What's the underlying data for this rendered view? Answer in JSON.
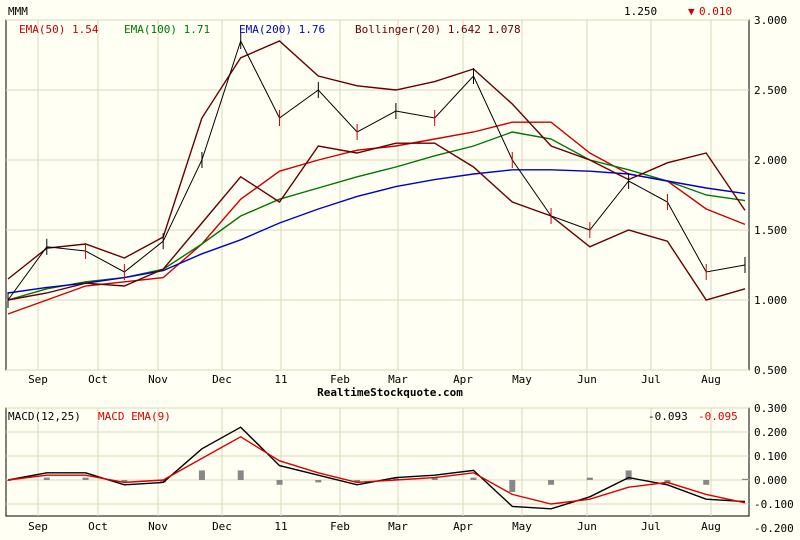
{
  "header": {
    "symbol": "MMM",
    "last_price": "1.250",
    "change_arrow": "▼",
    "change": "0.010",
    "watermark": "RealtimeStockquote.com"
  },
  "legend": {
    "ema50": "EMA(50) 1.54",
    "ema100": "EMA(100) 1.71",
    "ema200": "EMA(200) 1.76",
    "bollinger": "Bollinger(20) 1.642 1.078"
  },
  "macd_legend": {
    "macd": "MACD(12,25)",
    "signal": "MACD EMA(9)",
    "macd_value": "-0.093",
    "signal_value": "-0.095"
  },
  "colors": {
    "background": "#fffff3",
    "grid": "#d8d8b8",
    "price_up": "#000000",
    "price_down": "#cc0000",
    "ema50": "#cc0000",
    "ema100": "#007700",
    "ema200": "#0000cc",
    "bollinger": "#660000",
    "macd": "#000000",
    "macd_signal": "#dd0000",
    "histogram": "#888888"
  },
  "chart_data": [
    {
      "type": "line",
      "title": "MMM",
      "y_axis_side": "right",
      "ylim": [
        0.5,
        3.0
      ],
      "y_ticks": [
        "3.000",
        "2.500",
        "2.000",
        "1.500",
        "1.000",
        "0.500"
      ],
      "x_ticks": [
        "Sep",
        "Oct",
        "Nov",
        "Dec",
        "11",
        "Feb",
        "Mar",
        "Apr",
        "May",
        "Jun",
        "Jul",
        "Aug"
      ],
      "grid": true,
      "legend_position": "top-left",
      "series": [
        {
          "name": "EMA(50)",
          "values": [
            0.9,
            1.0,
            1.1,
            1.13,
            1.16,
            1.4,
            1.72,
            1.92,
            2.0,
            2.07,
            2.1,
            2.15,
            2.2,
            2.27,
            2.27,
            2.05,
            1.9,
            1.85,
            1.65,
            1.54
          ]
        },
        {
          "name": "EMA(100)",
          "values": [
            1.0,
            1.08,
            1.13,
            1.16,
            1.22,
            1.4,
            1.6,
            1.72,
            1.8,
            1.88,
            1.95,
            2.03,
            2.1,
            2.2,
            2.15,
            2.0,
            1.93,
            1.85,
            1.75,
            1.71
          ]
        },
        {
          "name": "EMA(200)",
          "values": [
            1.05,
            1.09,
            1.12,
            1.16,
            1.21,
            1.33,
            1.43,
            1.55,
            1.65,
            1.74,
            1.81,
            1.86,
            1.9,
            1.93,
            1.93,
            1.92,
            1.9,
            1.85,
            1.8,
            1.76
          ]
        },
        {
          "name": "Bollinger upper",
          "values": [
            1.15,
            1.37,
            1.4,
            1.3,
            1.45,
            2.3,
            2.73,
            2.85,
            2.6,
            2.53,
            2.5,
            2.56,
            2.65,
            2.4,
            2.1,
            2.0,
            1.86,
            1.98,
            2.05,
            1.64
          ]
        },
        {
          "name": "Bollinger lower",
          "values": [
            1.0,
            1.05,
            1.12,
            1.1,
            1.22,
            1.55,
            1.88,
            1.7,
            2.1,
            2.05,
            2.12,
            2.12,
            1.95,
            1.7,
            1.6,
            1.38,
            1.5,
            1.42,
            1.0,
            1.08
          ]
        },
        {
          "name": "Price",
          "values": [
            1.0,
            1.38,
            1.35,
            1.2,
            1.42,
            2.0,
            2.85,
            2.3,
            2.5,
            2.2,
            2.35,
            2.3,
            2.6,
            2.0,
            1.6,
            1.5,
            1.85,
            1.7,
            1.2,
            1.25
          ]
        }
      ]
    },
    {
      "type": "line",
      "title": "MACD(12,25)",
      "y_axis_side": "right",
      "ylim": [
        -0.15,
        0.3
      ],
      "y_ticks": [
        "0.300",
        "0.200",
        "0.100",
        "0.000",
        "-0.100",
        "-0.200"
      ],
      "x_ticks": [
        "Sep",
        "Oct",
        "Nov",
        "Dec",
        "11",
        "Feb",
        "Mar",
        "Apr",
        "May",
        "Jun",
        "Jul",
        "Aug"
      ],
      "grid": true,
      "legend_position": "top-left",
      "series": [
        {
          "name": "MACD(12,25)",
          "values": [
            0.0,
            0.03,
            0.03,
            -0.02,
            -0.01,
            0.13,
            0.22,
            0.06,
            0.02,
            -0.02,
            0.01,
            0.02,
            0.04,
            -0.11,
            -0.12,
            -0.07,
            0.01,
            -0.02,
            -0.08,
            -0.09
          ]
        },
        {
          "name": "MACD EMA(9)",
          "values": [
            0.0,
            0.02,
            0.02,
            -0.01,
            0.0,
            0.09,
            0.18,
            0.08,
            0.03,
            -0.01,
            0.0,
            0.01,
            0.03,
            -0.06,
            -0.1,
            -0.08,
            -0.03,
            -0.01,
            -0.06,
            -0.095
          ]
        },
        {
          "name": "Histogram",
          "values": [
            0.0,
            0.01,
            0.01,
            -0.01,
            -0.01,
            0.04,
            0.04,
            -0.02,
            -0.01,
            -0.01,
            0.01,
            0.01,
            0.01,
            -0.05,
            -0.02,
            0.01,
            0.04,
            -0.01,
            -0.02,
            0.005
          ]
        }
      ]
    }
  ]
}
